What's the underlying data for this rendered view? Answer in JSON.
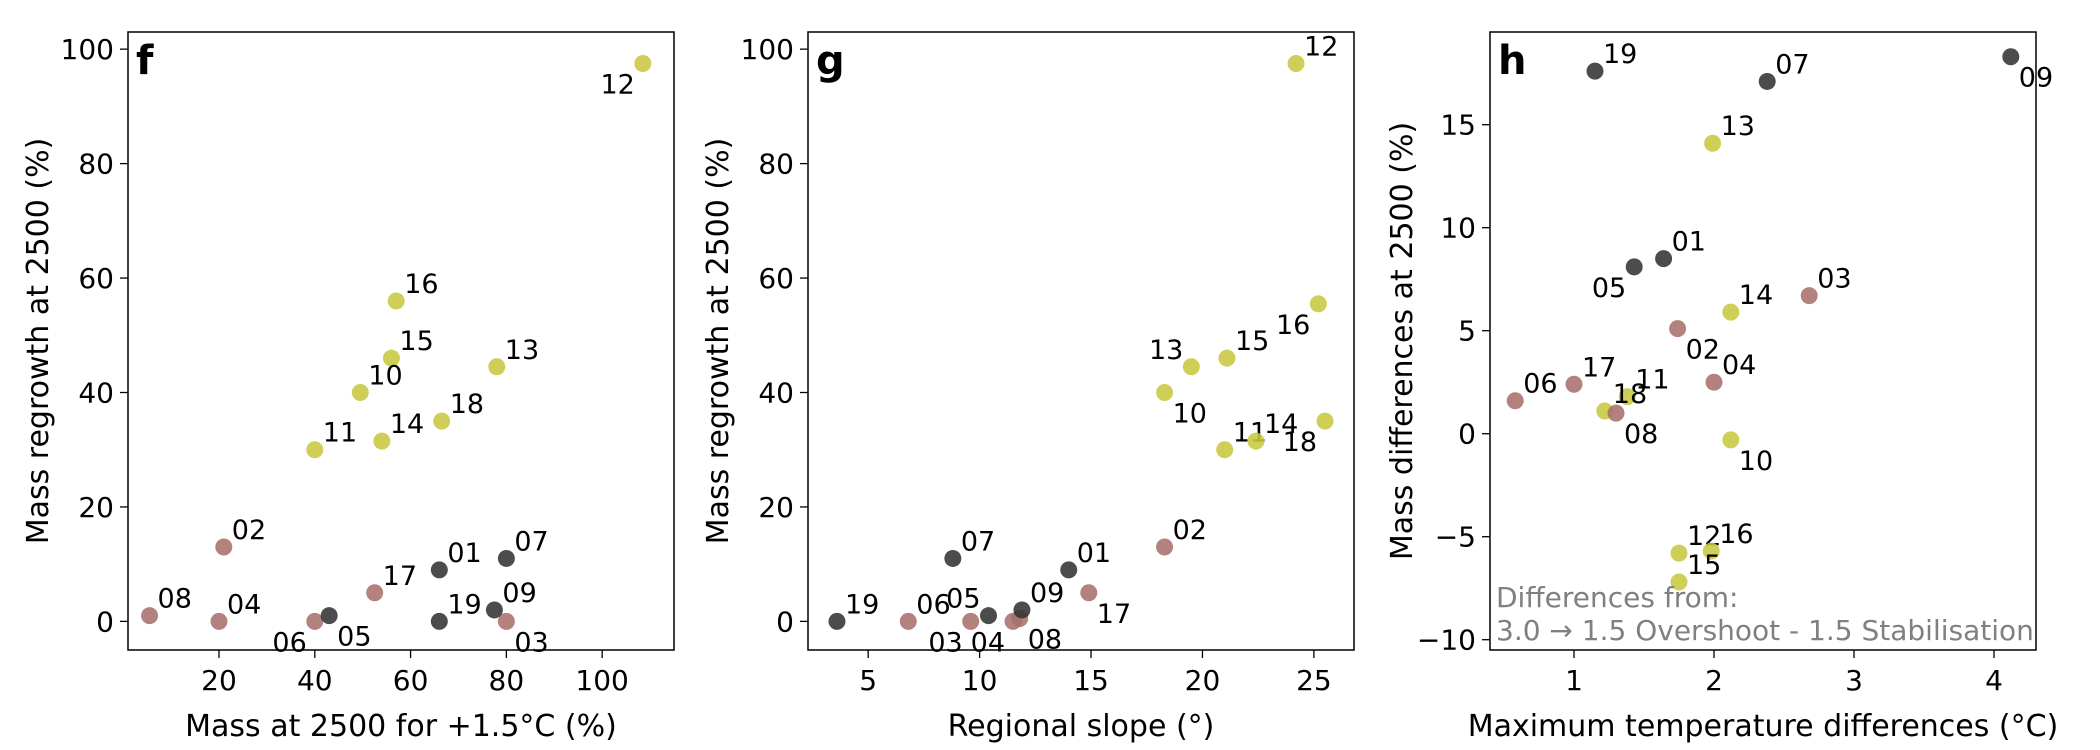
{
  "colors": {
    "yellow": "#c8c840",
    "brown": "#a8706c",
    "dark": "#333333"
  },
  "chart_data": [
    {
      "type": "scatter",
      "panel": "f",
      "xlabel": "Mass at 2500 for +1.5°C (%)",
      "ylabel": "Mass regrowth at 2500 (%)",
      "xlim": [
        1,
        115
      ],
      "ylim": [
        -5,
        103
      ],
      "xticks": [
        20,
        40,
        60,
        80,
        100
      ],
      "yticks": [
        0,
        20,
        40,
        60,
        80,
        100
      ],
      "points": [
        {
          "id": "12",
          "x": 108.5,
          "y": 97.5,
          "group": "yellow",
          "label_pos": "below-left"
        },
        {
          "id": "16",
          "x": 57,
          "y": 56,
          "group": "yellow",
          "label_pos": "above-right"
        },
        {
          "id": "15",
          "x": 56,
          "y": 46,
          "group": "yellow",
          "label_pos": "above-right"
        },
        {
          "id": "13",
          "x": 78,
          "y": 44.5,
          "group": "yellow",
          "label_pos": "above-right"
        },
        {
          "id": "10",
          "x": 49.5,
          "y": 40,
          "group": "yellow",
          "label_pos": "above-right"
        },
        {
          "id": "18",
          "x": 66.5,
          "y": 35,
          "group": "yellow",
          "label_pos": "above-right"
        },
        {
          "id": "14",
          "x": 54,
          "y": 31.5,
          "group": "yellow",
          "label_pos": "above-right"
        },
        {
          "id": "11",
          "x": 40,
          "y": 30,
          "group": "yellow",
          "label_pos": "above-right"
        },
        {
          "id": "02",
          "x": 21,
          "y": 13,
          "group": "brown",
          "label_pos": "above-right"
        },
        {
          "id": "17",
          "x": 52.5,
          "y": 5,
          "group": "brown",
          "label_pos": "above-right"
        },
        {
          "id": "08",
          "x": 5.5,
          "y": 1,
          "group": "brown",
          "label_pos": "above-right"
        },
        {
          "id": "04",
          "x": 20,
          "y": 0,
          "group": "brown",
          "label_pos": "above-right"
        },
        {
          "id": "06",
          "x": 40,
          "y": 0,
          "group": "brown",
          "label_pos": "below-left"
        },
        {
          "id": "03",
          "x": 80,
          "y": 0,
          "group": "brown",
          "label_pos": "below-right"
        },
        {
          "id": "01",
          "x": 66,
          "y": 9,
          "group": "dark",
          "label_pos": "above-right"
        },
        {
          "id": "07",
          "x": 80,
          "y": 11,
          "group": "dark",
          "label_pos": "above-right"
        },
        {
          "id": "09",
          "x": 77.5,
          "y": 2,
          "group": "dark",
          "label_pos": "above-right"
        },
        {
          "id": "05",
          "x": 43,
          "y": 1,
          "group": "dark",
          "label_pos": "below-right"
        },
        {
          "id": "19",
          "x": 66,
          "y": 0,
          "group": "dark",
          "label_pos": "above-right"
        }
      ]
    },
    {
      "type": "scatter",
      "panel": "g",
      "xlabel": "Regional slope (°)",
      "ylabel": "Mass regrowth at 2500 (%)",
      "xlim": [
        2.3,
        26.8
      ],
      "ylim": [
        -5,
        103
      ],
      "xticks": [
        5,
        10,
        15,
        20,
        25
      ],
      "yticks": [
        0,
        20,
        40,
        60,
        80,
        100
      ],
      "points": [
        {
          "id": "12",
          "x": 24.2,
          "y": 97.5,
          "group": "yellow",
          "label_pos": "above-right"
        },
        {
          "id": "16",
          "x": 25.2,
          "y": 55.5,
          "group": "yellow",
          "label_pos": "below-left"
        },
        {
          "id": "13",
          "x": 19.5,
          "y": 44.5,
          "group": "yellow",
          "label_pos": "above-left"
        },
        {
          "id": "15",
          "x": 21.1,
          "y": 46,
          "group": "yellow",
          "label_pos": "above-right"
        },
        {
          "id": "10",
          "x": 18.3,
          "y": 40,
          "group": "yellow",
          "label_pos": "below-right"
        },
        {
          "id": "11",
          "x": 21,
          "y": 30,
          "group": "yellow",
          "label_pos": "above-right"
        },
        {
          "id": "14",
          "x": 22.4,
          "y": 31.5,
          "group": "yellow",
          "label_pos": "above-right"
        },
        {
          "id": "18",
          "x": 25.5,
          "y": 35,
          "group": "yellow",
          "label_pos": "below-left"
        },
        {
          "id": "02",
          "x": 18.3,
          "y": 13,
          "group": "brown",
          "label_pos": "above-right"
        },
        {
          "id": "17",
          "x": 14.9,
          "y": 5,
          "group": "brown",
          "label_pos": "below-right"
        },
        {
          "id": "06",
          "x": 6.8,
          "y": 0,
          "group": "brown",
          "label_pos": "above-right"
        },
        {
          "id": "03",
          "x": 9.6,
          "y": 0,
          "group": "brown",
          "label_pos": "below-left"
        },
        {
          "id": "04",
          "x": 11.5,
          "y": 0,
          "group": "brown",
          "label_pos": "below-left"
        },
        {
          "id": "08",
          "x": 11.8,
          "y": 0.5,
          "group": "brown",
          "label_pos": "below-right"
        },
        {
          "id": "19",
          "x": 3.6,
          "y": 0,
          "group": "dark",
          "label_pos": "above-right"
        },
        {
          "id": "07",
          "x": 8.8,
          "y": 11,
          "group": "dark",
          "label_pos": "above-right"
        },
        {
          "id": "01",
          "x": 14,
          "y": 9,
          "group": "dark",
          "label_pos": "above-right"
        },
        {
          "id": "05",
          "x": 10.4,
          "y": 1,
          "group": "dark",
          "label_pos": "above-left"
        },
        {
          "id": "09",
          "x": 11.9,
          "y": 2,
          "group": "dark",
          "label_pos": "above-right"
        }
      ]
    },
    {
      "type": "scatter",
      "panel": "h",
      "xlabel": "Maximum temperature differences (°C)",
      "ylabel": "Mass differences at 2500 (%)",
      "xlim": [
        0.4,
        4.3
      ],
      "ylim": [
        -10.5,
        19.5
      ],
      "xticks": [
        1,
        2,
        3,
        4
      ],
      "yticks": [
        -10,
        -5,
        0,
        5,
        10,
        15
      ],
      "annotation_lines": [
        "Differences from:",
        "3.0 → 1.5 Overshoot - 1.5 Stabilisation"
      ],
      "points": [
        {
          "id": "19",
          "x": 1.15,
          "y": 17.6,
          "group": "dark",
          "label_pos": "above-right"
        },
        {
          "id": "07",
          "x": 2.38,
          "y": 17.1,
          "group": "dark",
          "label_pos": "above-right"
        },
        {
          "id": "09",
          "x": 4.12,
          "y": 18.3,
          "group": "dark",
          "label_pos": "below-right"
        },
        {
          "id": "13",
          "x": 1.99,
          "y": 14.1,
          "group": "yellow",
          "label_pos": "above-right"
        },
        {
          "id": "01",
          "x": 1.64,
          "y": 8.5,
          "group": "dark",
          "label_pos": "above-right"
        },
        {
          "id": "05",
          "x": 1.43,
          "y": 8.1,
          "group": "dark",
          "label_pos": "below-left"
        },
        {
          "id": "14",
          "x": 2.12,
          "y": 5.9,
          "group": "yellow",
          "label_pos": "above-right"
        },
        {
          "id": "03",
          "x": 2.68,
          "y": 6.7,
          "group": "brown",
          "label_pos": "above-right"
        },
        {
          "id": "02",
          "x": 1.74,
          "y": 5.1,
          "group": "brown",
          "label_pos": "below-right"
        },
        {
          "id": "04",
          "x": 2.0,
          "y": 2.5,
          "group": "brown",
          "label_pos": "above-right"
        },
        {
          "id": "06",
          "x": 0.58,
          "y": 1.6,
          "group": "brown",
          "label_pos": "above-right"
        },
        {
          "id": "17",
          "x": 1.0,
          "y": 2.4,
          "group": "brown",
          "label_pos": "above-right"
        },
        {
          "id": "11",
          "x": 1.38,
          "y": 1.8,
          "group": "yellow",
          "label_pos": "above-right"
        },
        {
          "id": "18",
          "x": 1.22,
          "y": 1.1,
          "group": "yellow",
          "label_pos": "above-right"
        },
        {
          "id": "08",
          "x": 1.3,
          "y": 1.0,
          "group": "brown",
          "label_pos": "below-right"
        },
        {
          "id": "10",
          "x": 2.12,
          "y": -0.3,
          "group": "yellow",
          "label_pos": "below-right"
        },
        {
          "id": "12",
          "x": 1.75,
          "y": -5.8,
          "group": "yellow",
          "label_pos": "above-right"
        },
        {
          "id": "16",
          "x": 1.98,
          "y": -5.7,
          "group": "yellow",
          "label_pos": "above-right"
        },
        {
          "id": "15",
          "x": 1.75,
          "y": -7.2,
          "group": "yellow",
          "label_pos": "above-right"
        }
      ]
    }
  ]
}
